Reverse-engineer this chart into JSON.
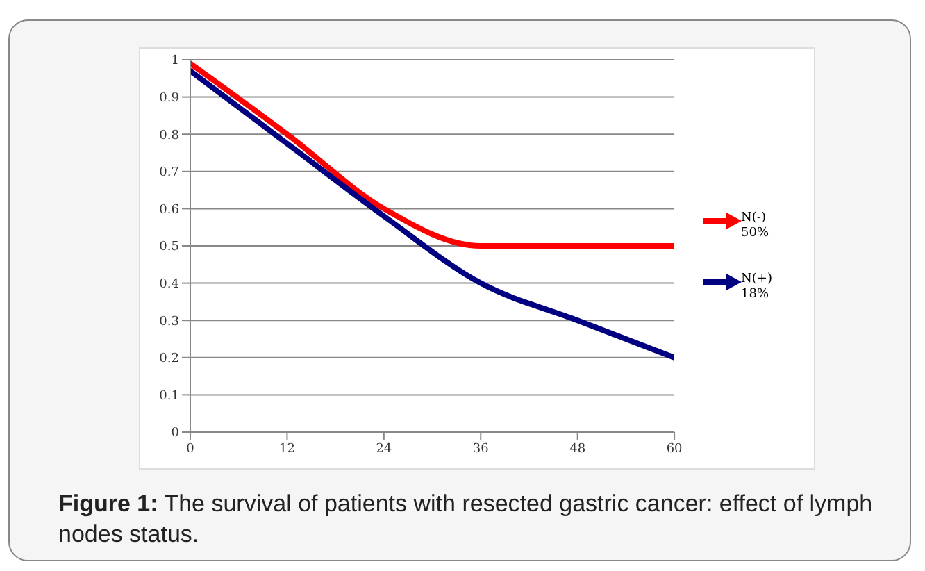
{
  "chart_data": {
    "type": "line",
    "x": [
      0,
      12,
      24,
      36,
      48,
      60
    ],
    "series": [
      {
        "name": "N(-) 50%",
        "color": "#ff0000",
        "values": [
          0.99,
          0.8,
          0.6,
          0.5,
          0.5,
          0.5
        ]
      },
      {
        "name": "N(+) 18%",
        "color": "#000080",
        "values": [
          0.97,
          0.775,
          0.58,
          0.4,
          0.3,
          0.2
        ]
      }
    ],
    "xlim": [
      0,
      60
    ],
    "xticks": [
      0,
      12,
      24,
      36,
      48,
      60
    ],
    "ylim": [
      0,
      1
    ],
    "yticks": [
      0,
      0.1,
      0.2,
      0.3,
      0.4,
      0.5,
      0.6,
      0.7,
      0.8,
      0.9,
      1
    ],
    "grid": "y",
    "legend": "right",
    "marker": "none",
    "line_style": "solid",
    "annotations": [
      "Figure 1: The survival of patients with resected gastric cancer: effect of lymph nodes status."
    ]
  }
}
